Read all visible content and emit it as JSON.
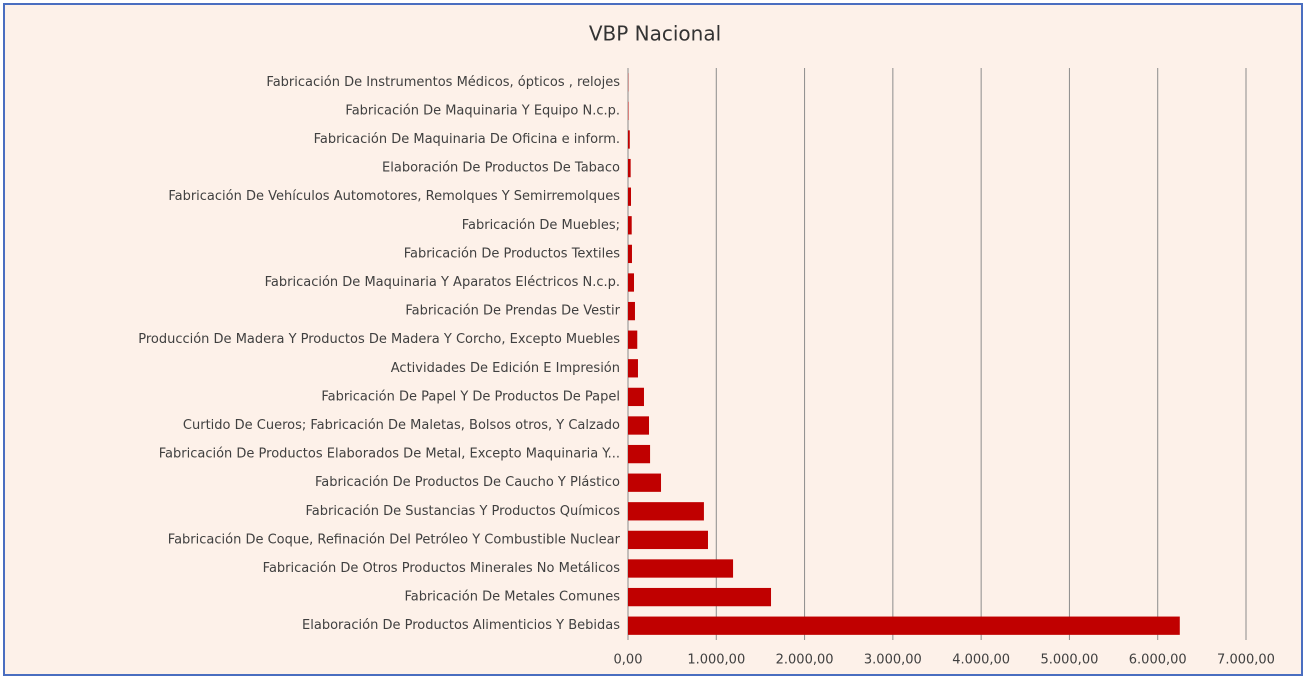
{
  "chart_data": {
    "type": "bar",
    "orientation": "horizontal",
    "title": "VBP Nacional",
    "categories": [
      "Fabricación De Instrumentos Médicos, ópticos , relojes",
      "Fabricación De Maquinaria Y Equipo N.c.p.",
      "Fabricación De Maquinaria De Oficina e inform.",
      "Elaboración De Productos De Tabaco",
      "Fabricación De Vehículos Automotores, Remolques Y Semirremolques",
      "Fabricación De Muebles;",
      "Fabricación De Productos Textiles",
      "Fabricación De Maquinaria Y Aparatos Eléctricos N.c.p.",
      "Fabricación De Prendas De Vestir",
      "Producción De Madera Y Productos De Madera Y Corcho, Excepto Muebles",
      "Actividades De Edición E Impresión",
      "Fabricación De Papel Y De Productos De Papel",
      "Curtido  De Cueros; Fabricación De Maletas, Bolsos otros, Y Calzado",
      "Fabricación De Productos Elaborados De Metal, Excepto Maquinaria Y...",
      "Fabricación De Productos De Caucho Y Plástico",
      "Fabricación De Sustancias Y Productos Químicos",
      "Fabricación De Coque, Refinación Del Petróleo Y Combustible Nuclear",
      "Fabricación De Otros Productos Minerales No Metálicos",
      "Fabricación De Metales Comunes",
      "Elaboración De Productos Alimenticios Y Bebidas"
    ],
    "values": [
      3,
      5,
      20,
      30,
      34,
      42,
      45,
      68,
      79,
      105,
      113,
      181,
      238,
      250,
      374,
      860,
      906,
      1190,
      1620,
      6250
    ],
    "color": "#c00000",
    "xlim": [
      0,
      7000
    ],
    "xticks": [
      {
        "value": 0,
        "label": "0,00"
      },
      {
        "value": 1000,
        "label": "1.000,00"
      },
      {
        "value": 2000,
        "label": "2.000,00"
      },
      {
        "value": 3000,
        "label": "3.000,00"
      },
      {
        "value": 4000,
        "label": "4.000,00"
      },
      {
        "value": 5000,
        "label": "5.000,00"
      },
      {
        "value": 6000,
        "label": "6.000,00"
      },
      {
        "value": 7000,
        "label": "7.000,00"
      }
    ],
    "grid": true
  }
}
